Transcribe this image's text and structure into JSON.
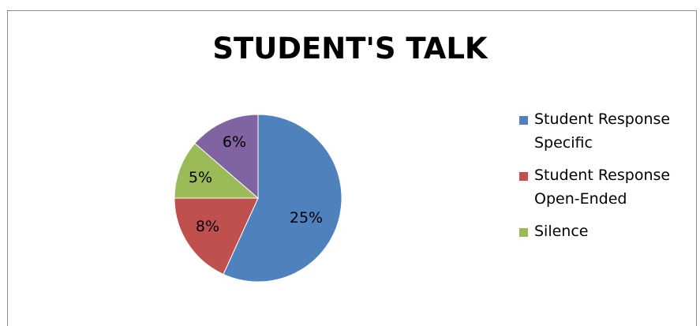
{
  "chart_data": {
    "type": "pie",
    "title": "STUDENT'S TALK",
    "slices": [
      {
        "label": "Student Response Specific",
        "value": 25,
        "display": "25%",
        "color": "#4f81bd"
      },
      {
        "label": "Student Response Open-Ended",
        "value": 8,
        "display": "8%",
        "color": "#c0504d"
      },
      {
        "label": "Silence",
        "value": 5,
        "display": "5%",
        "color": "#9bbb59"
      },
      {
        "label": "",
        "value": 6,
        "display": "6%",
        "color": "#8064a2"
      }
    ],
    "legend": {
      "placement": "right",
      "items": [
        {
          "label_line1": "Student Response",
          "label_line2": "Specific",
          "color": "#4f81bd"
        },
        {
          "label_line1": "Student Response",
          "label_line2": "Open-Ended",
          "color": "#c0504d"
        },
        {
          "label_line1": "Silence",
          "label_line2": "",
          "color": "#9bbb59"
        }
      ]
    }
  }
}
